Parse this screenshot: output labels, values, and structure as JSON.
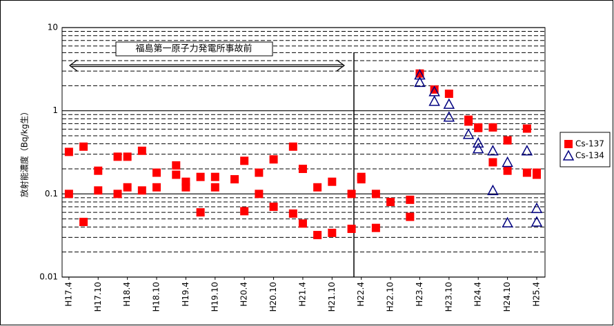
{
  "chart_data": {
    "type": "scatter",
    "y_label": "放射能濃度（Bq/kg生）",
    "annotation": "福島第一原子力発電所事故前",
    "log_y": true,
    "grid": true,
    "minor_grid": true,
    "legend": "right",
    "ylim": [
      0.01,
      10
    ],
    "yticks": [
      0.01,
      0.1,
      1,
      10
    ],
    "xlim": [
      -1.4,
      97.7
    ],
    "xticks": [
      {
        "value": 0,
        "label": "H17.4"
      },
      {
        "value": 6,
        "label": "H17.10"
      },
      {
        "value": 12,
        "label": "H18.4"
      },
      {
        "value": 18,
        "label": "H18.10"
      },
      {
        "value": 24,
        "label": "H19.4"
      },
      {
        "value": 30,
        "label": "H19.10"
      },
      {
        "value": 36,
        "label": "H20.4"
      },
      {
        "value": 42,
        "label": "H20.10"
      },
      {
        "value": 48,
        "label": "H21.4"
      },
      {
        "value": 54,
        "label": "H21.10"
      },
      {
        "value": 60,
        "label": "H22.4"
      },
      {
        "value": 66,
        "label": "H22.10"
      },
      {
        "value": 72,
        "label": "H23.4"
      },
      {
        "value": 78,
        "label": "H23.10"
      },
      {
        "value": 84,
        "label": "H24.4"
      },
      {
        "value": 90,
        "label": "H24.10"
      },
      {
        "value": 96,
        "label": "H25.4"
      }
    ],
    "series": [
      {
        "name": "Cs-137",
        "color": "#ff0000",
        "marker": "square",
        "x": [
          0,
          0,
          3,
          3,
          6,
          6,
          10,
          10,
          12,
          12,
          15,
          15,
          18,
          18,
          22,
          22,
          24,
          24,
          27,
          27,
          30,
          30,
          34,
          36,
          36,
          39,
          39,
          42,
          42,
          46,
          46,
          48,
          48,
          51,
          51,
          54,
          54,
          58,
          58,
          60,
          60,
          63,
          63,
          66,
          70,
          70,
          72,
          75,
          78,
          82,
          82,
          84,
          84,
          87,
          87,
          90,
          90,
          94,
          94,
          96,
          96
        ],
        "values": [
          0.32,
          0.1,
          0.37,
          0.046,
          0.19,
          0.11,
          0.28,
          0.1,
          0.28,
          0.12,
          0.33,
          0.11,
          0.18,
          0.12,
          0.22,
          0.17,
          0.14,
          0.12,
          0.16,
          0.06,
          0.16,
          0.12,
          0.15,
          0.25,
          0.062,
          0.18,
          0.1,
          0.26,
          0.07,
          0.37,
          0.058,
          0.2,
          0.044,
          0.12,
          0.032,
          0.14,
          0.034,
          0.1,
          0.038,
          0.16,
          0.15,
          0.1,
          0.039,
          0.08,
          0.085,
          0.053,
          2.8,
          1.8,
          1.6,
          0.78,
          0.74,
          0.63,
          0.62,
          0.63,
          0.24,
          0.44,
          0.19,
          0.61,
          0.18,
          0.18,
          0.17
        ]
      },
      {
        "name": "Cs-134",
        "color": "#000080",
        "marker": "triangle",
        "x": [
          72,
          72,
          75,
          75,
          78,
          78,
          82,
          84,
          84,
          87,
          87,
          90,
          90,
          94,
          96,
          96
        ],
        "values": [
          2.7,
          2.2,
          1.7,
          1.3,
          1.2,
          0.84,
          0.52,
          0.41,
          0.35,
          0.33,
          0.11,
          0.24,
          0.045,
          0.33,
          0.067,
          0.046
        ]
      }
    ]
  }
}
